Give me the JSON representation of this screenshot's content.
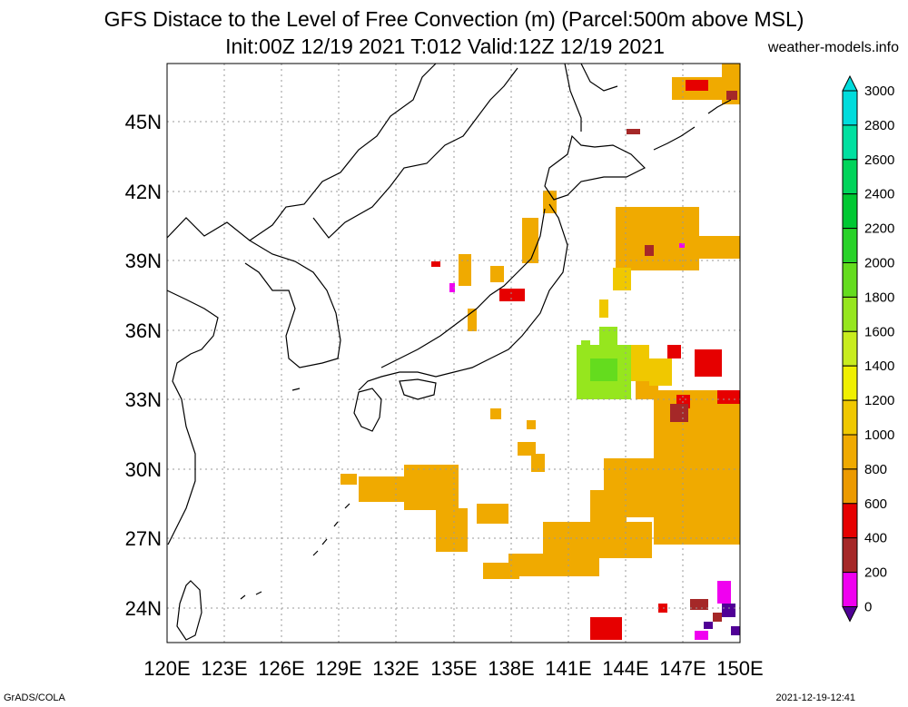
{
  "title_line1": "GFS Distace to the Level of Free Convection (m) (Parcel:500m above MSL)",
  "title_line2": "Init:00Z 12/19 2021 T:012 Valid:12Z 12/19 2021",
  "site": "weather-models.info",
  "footer_left": "GrADS/COLA",
  "footer_right": "2021-12-19-12:41",
  "lat_labels": [
    "45N",
    "42N",
    "39N",
    "36N",
    "33N",
    "30N",
    "27N",
    "24N"
  ],
  "lon_labels": [
    "120E",
    "123E",
    "126E",
    "129E",
    "132E",
    "135E",
    "138E",
    "141E",
    "144E",
    "147E",
    "150E"
  ],
  "colorbar": {
    "labels": [
      "3000",
      "2800",
      "2600",
      "2400",
      "2200",
      "2000",
      "1800",
      "1600",
      "1400",
      "1200",
      "1000",
      "800",
      "600",
      "400",
      "200",
      "0"
    ],
    "colors": [
      "#00dcdc",
      "#00e0a0",
      "#00d45a",
      "#00c832",
      "#28d228",
      "#64dc1e",
      "#96e61e",
      "#c8ec1e",
      "#f0f000",
      "#f0c800",
      "#f0aa00",
      "#ec9a00",
      "#e60000",
      "#a52828",
      "#f000f0",
      "#500096"
    ]
  },
  "map_colors": {
    "orange": "#f0aa00",
    "yellow": "#f0c800",
    "red": "#e60000",
    "brown": "#a52828",
    "magenta": "#f000f0",
    "purple": "#500096",
    "lime": "#96e61e",
    "green": "#64dc1e"
  }
}
